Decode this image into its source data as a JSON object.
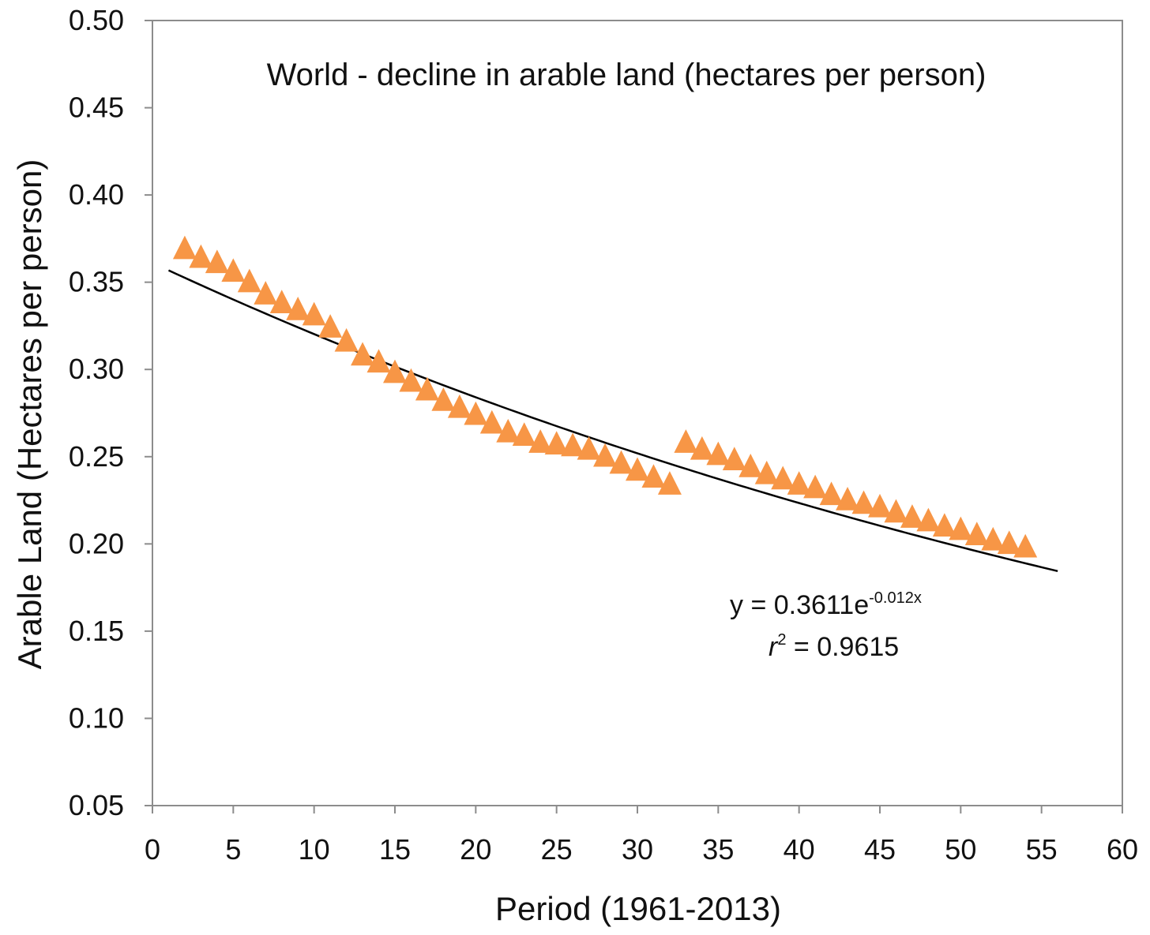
{
  "chart_data": {
    "type": "scatter",
    "title": "World - decline in arable land (hectares per person)",
    "xlabel": "Period (1961-2013)",
    "ylabel": "Arable Land (Hectares per person)",
    "xlim": [
      0,
      60
    ],
    "ylim": [
      0.05,
      0.5
    ],
    "x_ticks": [
      "0",
      "5",
      "10",
      "15",
      "20",
      "25",
      "30",
      "35",
      "40",
      "45",
      "50",
      "55",
      "60"
    ],
    "y_ticks": [
      "0.05",
      "0.10",
      "0.15",
      "0.20",
      "0.25",
      "0.30",
      "0.35",
      "0.40",
      "0.45",
      "0.50"
    ],
    "grid": false,
    "legend": "none",
    "marker": "triangle",
    "marker_color": "#F79646",
    "trendline_color": "#000000",
    "series": [
      {
        "x": [
          2,
          3,
          4,
          5,
          6,
          7,
          8,
          9,
          10,
          11,
          12,
          13,
          14,
          15,
          16,
          17,
          18,
          19,
          20,
          21,
          22,
          23,
          24,
          25,
          26,
          27,
          28,
          29,
          30,
          31,
          32,
          33,
          34,
          35,
          36,
          37,
          38,
          39,
          40,
          41,
          42,
          43,
          44,
          45,
          46,
          47,
          48,
          49,
          50,
          51,
          52,
          53,
          54
        ],
        "values": [
          0.369,
          0.364,
          0.361,
          0.356,
          0.35,
          0.343,
          0.338,
          0.334,
          0.331,
          0.324,
          0.316,
          0.308,
          0.304,
          0.298,
          0.293,
          0.288,
          0.282,
          0.278,
          0.274,
          0.269,
          0.264,
          0.262,
          0.258,
          0.257,
          0.256,
          0.254,
          0.25,
          0.246,
          0.242,
          0.238,
          0.234,
          0.258,
          0.254,
          0.251,
          0.248,
          0.244,
          0.24,
          0.237,
          0.234,
          0.232,
          0.228,
          0.225,
          0.223,
          0.221,
          0.218,
          0.215,
          0.213,
          0.21,
          0.208,
          0.205,
          0.202,
          0.2,
          0.198
        ]
      }
    ],
    "trendline": {
      "type": "exponential",
      "a": 0.3611,
      "b": -0.012,
      "x_range": [
        1,
        56
      ]
    },
    "annotations": {
      "equation_prefix": "y = 0.3611e",
      "equation_exponent": "-0.012x",
      "r2_symbol": "r",
      "r2_exponent": "2",
      "r2_value": " = 0.9615"
    }
  }
}
